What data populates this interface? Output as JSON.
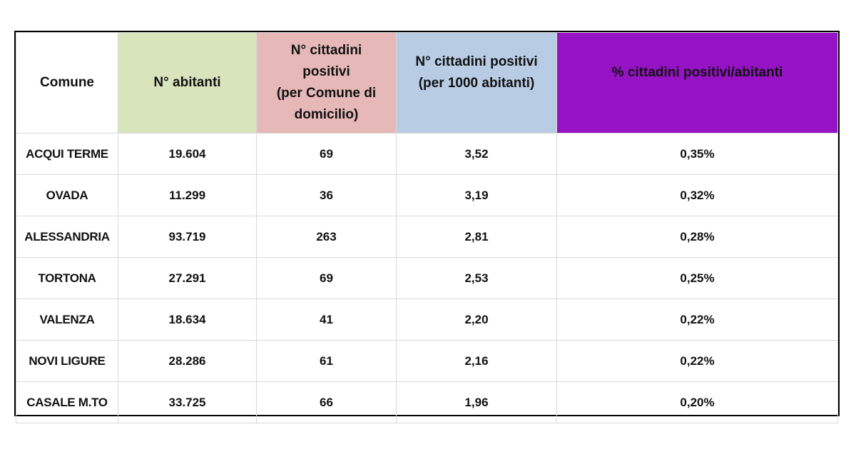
{
  "table": {
    "headers": [
      {
        "label": "Comune",
        "color": "#ffffff"
      },
      {
        "label": "N° abitanti",
        "color": "#d8e4bc"
      },
      {
        "label": "N° cittadini\npositivi\n(per Comune di\ndomicilio)",
        "color": "#e6b8b7"
      },
      {
        "label": "N° cittadini positivi\n(per 1000 abitanti)",
        "color": "#b8cce4"
      },
      {
        "label": "% cittadini positivi/abitanti",
        "color": "#9513c4"
      }
    ],
    "rows": [
      [
        "ACQUI TERME",
        "19.604",
        "69",
        "3,52",
        "0,35%"
      ],
      [
        "OVADA",
        "11.299",
        "36",
        "3,19",
        "0,32%"
      ],
      [
        "ALESSANDRIA",
        "93.719",
        "263",
        "2,81",
        "0,28%"
      ],
      [
        "TORTONA",
        "27.291",
        "69",
        "2,53",
        "0,25%"
      ],
      [
        "VALENZA",
        "18.634",
        "41",
        "2,20",
        "0,22%"
      ],
      [
        "NOVI LIGURE",
        "28.286",
        "61",
        "2,16",
        "0,22%"
      ],
      [
        "CASALE M.TO",
        "33.725",
        "66",
        "1,96",
        "0,20%"
      ]
    ]
  }
}
